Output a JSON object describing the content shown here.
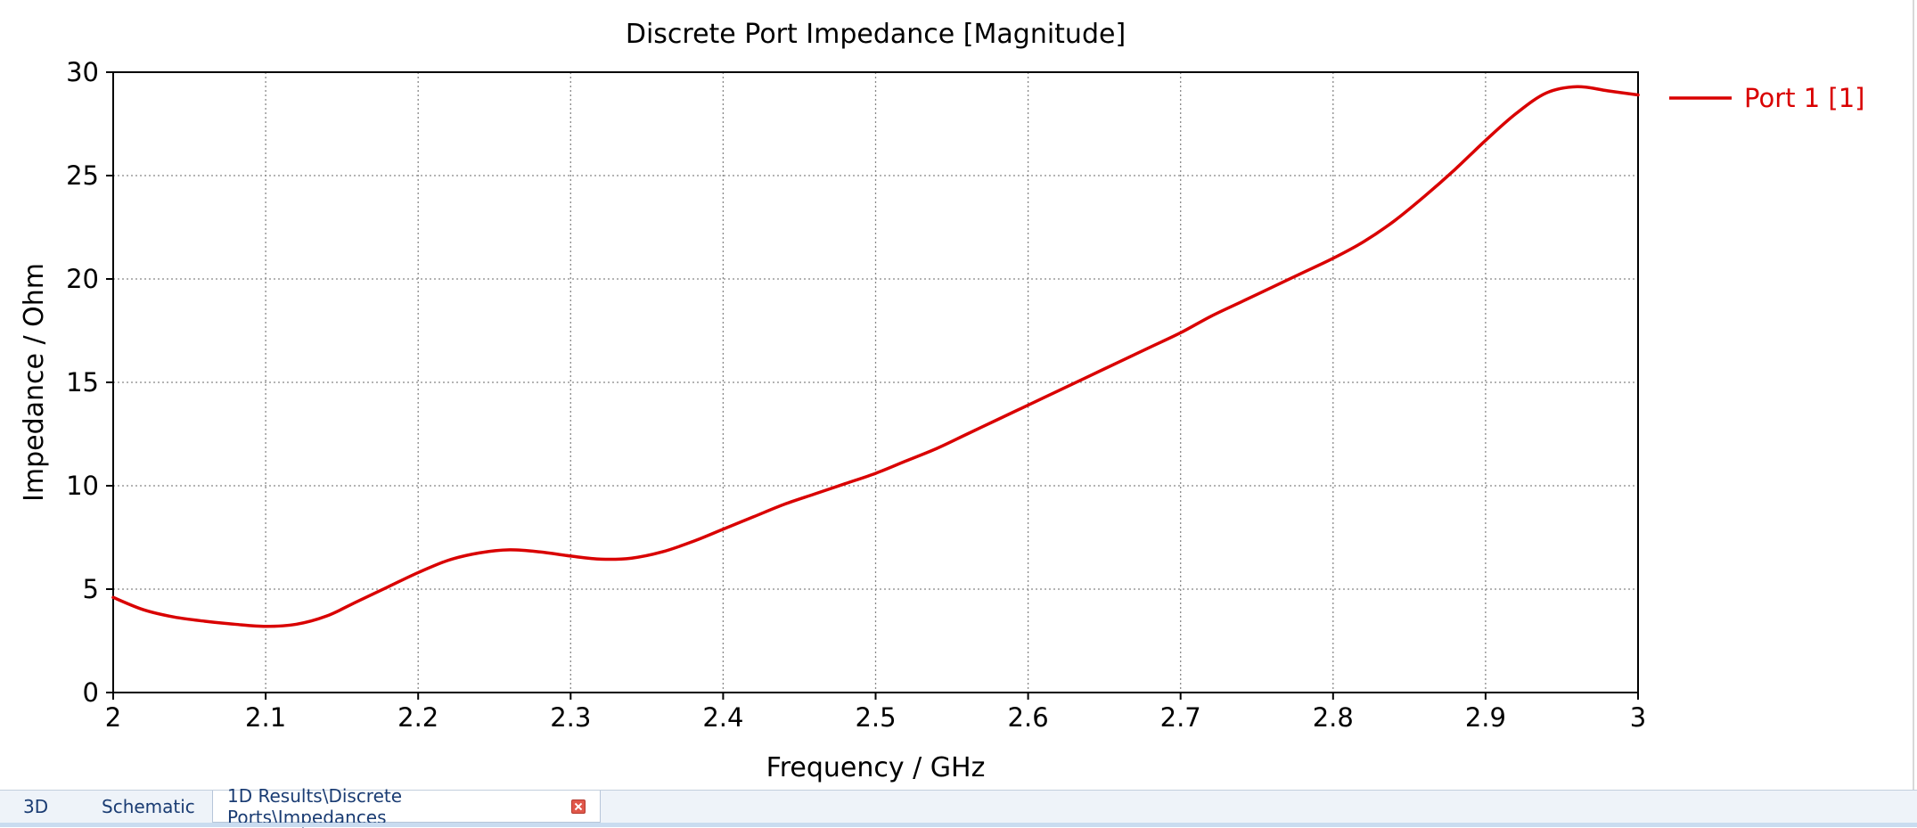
{
  "colors": {
    "series": "#d90000",
    "grid": "#888888",
    "axis": "#000000"
  },
  "chart_data": {
    "type": "line",
    "title": "Discrete Port Impedance [Magnitude]",
    "xlabel": "Frequency / GHz",
    "ylabel": "Impedance / Ohm",
    "xlim": [
      2,
      3
    ],
    "ylim": [
      0,
      30
    ],
    "xticks": [
      2,
      2.1,
      2.2,
      2.3,
      2.4,
      2.5,
      2.6,
      2.7,
      2.8,
      2.9,
      3
    ],
    "yticks": [
      0,
      5,
      10,
      15,
      20,
      25,
      30
    ],
    "xtick_labels": [
      "2",
      "2.1",
      "2.2",
      "2.3",
      "2.4",
      "2.5",
      "2.6",
      "2.7",
      "2.8",
      "2.9",
      "3"
    ],
    "ytick_labels": [
      "0",
      "5",
      "10",
      "15",
      "20",
      "25",
      "30"
    ],
    "grid": true,
    "legend_position": "right",
    "series": [
      {
        "name": "Port 1 [1]",
        "color": "#d90000",
        "x": [
          2.0,
          2.02,
          2.04,
          2.06,
          2.08,
          2.1,
          2.12,
          2.14,
          2.16,
          2.18,
          2.2,
          2.22,
          2.24,
          2.26,
          2.28,
          2.3,
          2.32,
          2.34,
          2.36,
          2.38,
          2.4,
          2.42,
          2.44,
          2.46,
          2.48,
          2.5,
          2.52,
          2.54,
          2.56,
          2.58,
          2.6,
          2.62,
          2.64,
          2.66,
          2.68,
          2.7,
          2.72,
          2.74,
          2.76,
          2.78,
          2.8,
          2.82,
          2.84,
          2.86,
          2.88,
          2.9,
          2.92,
          2.94,
          2.96,
          2.98,
          3.0
        ],
        "y": [
          4.6,
          4.0,
          3.65,
          3.45,
          3.3,
          3.2,
          3.3,
          3.7,
          4.4,
          5.1,
          5.8,
          6.4,
          6.75,
          6.9,
          6.8,
          6.6,
          6.45,
          6.5,
          6.8,
          7.3,
          7.9,
          8.5,
          9.1,
          9.6,
          10.1,
          10.6,
          11.2,
          11.8,
          12.5,
          13.2,
          13.9,
          14.6,
          15.3,
          16.0,
          16.7,
          17.4,
          18.2,
          18.9,
          19.6,
          20.3,
          21.0,
          21.8,
          22.8,
          24.0,
          25.3,
          26.7,
          28.0,
          29.0,
          29.3,
          29.1,
          28.9
        ]
      }
    ]
  },
  "tabs": [
    {
      "label": "3D"
    },
    {
      "label": "Schematic"
    },
    {
      "label": "1D Results\\Discrete Ports\\Impedances",
      "active": true,
      "closable": true
    }
  ]
}
